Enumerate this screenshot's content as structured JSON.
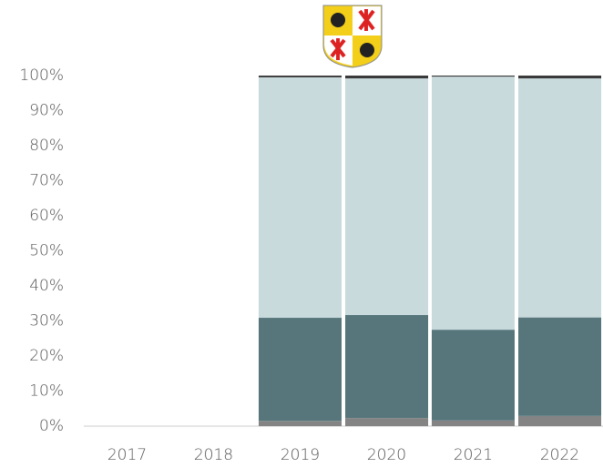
{
  "chart_data": {
    "type": "stacked-bar",
    "categories": [
      "2017",
      "2018",
      "2019",
      "2020",
      "2021",
      "2022"
    ],
    "series": [
      {
        "color": "#848484",
        "values": [
          null,
          null,
          1.5,
          2.3,
          1.6,
          2.9
        ]
      },
      {
        "color": "#56767c",
        "values": [
          null,
          null,
          29.4,
          29.4,
          25.9,
          28.1
        ]
      },
      {
        "color": "#c9dadd",
        "values": [
          null,
          null,
          68.6,
          67.5,
          72.2,
          68.2
        ]
      },
      {
        "color": "#3a3a3a",
        "values": [
          null,
          null,
          0.5,
          0.8,
          0.3,
          0.8
        ]
      }
    ],
    "ylim": [
      0,
      100
    ],
    "yticks": [
      {
        "value": 0,
        "label": "0%"
      },
      {
        "value": 10,
        "label": "10%"
      },
      {
        "value": 20,
        "label": "20%"
      },
      {
        "value": 30,
        "label": "30%"
      },
      {
        "value": 40,
        "label": "40%"
      },
      {
        "value": 50,
        "label": "50%"
      },
      {
        "value": 60,
        "label": "60%"
      },
      {
        "value": 70,
        "label": "70%"
      },
      {
        "value": 80,
        "label": "80%"
      },
      {
        "value": 90,
        "label": "90%"
      },
      {
        "value": 100,
        "label": "100%"
      }
    ]
  }
}
